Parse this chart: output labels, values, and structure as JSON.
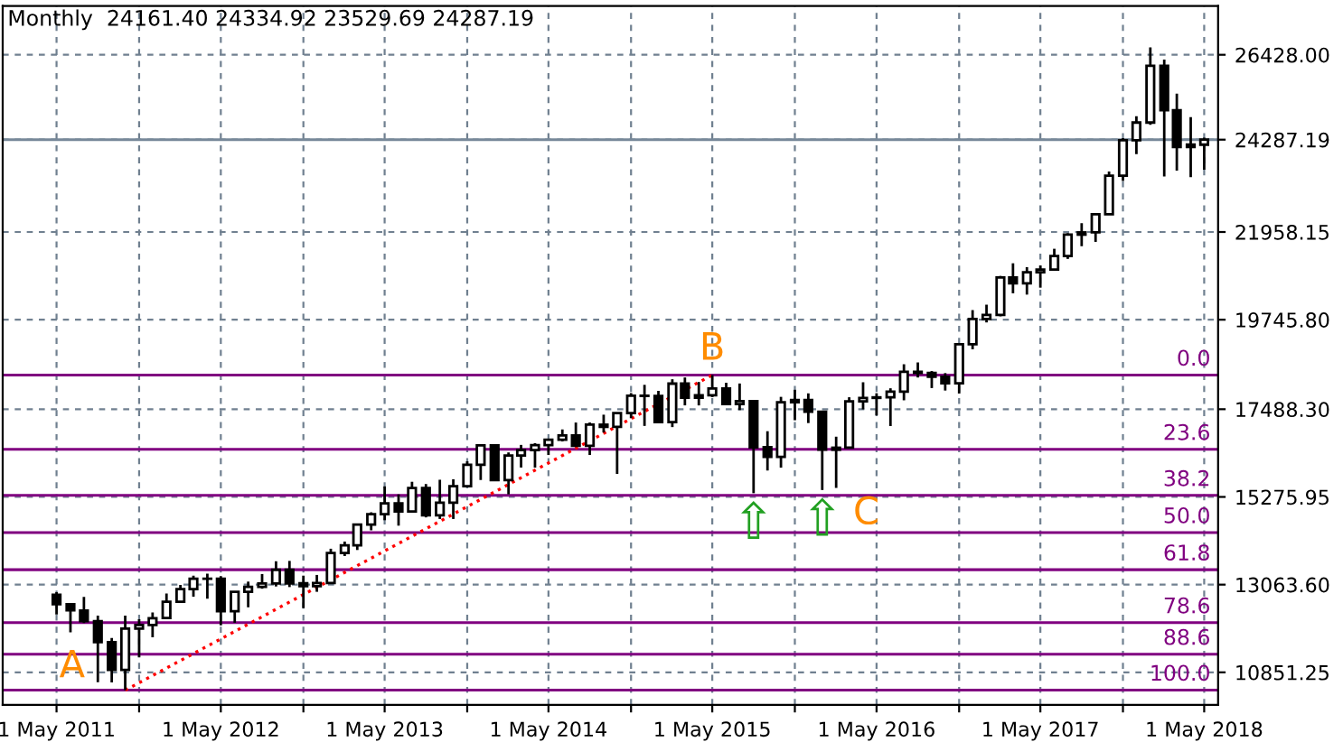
{
  "chart_data": {
    "type": "candlestick",
    "title": "Monthly  24161.40 24334.92 23529.69 24287.19",
    "x": [
      "2011-05",
      "2011-06",
      "2011-07",
      "2011-08",
      "2011-09",
      "2011-10",
      "2011-11",
      "2011-12",
      "2012-01",
      "2012-02",
      "2012-03",
      "2012-04",
      "2012-05",
      "2012-06",
      "2012-07",
      "2012-08",
      "2012-09",
      "2012-10",
      "2012-11",
      "2012-12",
      "2013-01",
      "2013-02",
      "2013-03",
      "2013-04",
      "2013-05",
      "2013-06",
      "2013-07",
      "2013-08",
      "2013-09",
      "2013-10",
      "2013-11",
      "2013-12",
      "2014-01",
      "2014-02",
      "2014-03",
      "2014-04",
      "2014-05",
      "2014-06",
      "2014-07",
      "2014-08",
      "2014-09",
      "2014-10",
      "2014-11",
      "2014-12",
      "2015-01",
      "2015-02",
      "2015-03",
      "2015-04",
      "2015-05",
      "2015-06",
      "2015-07",
      "2015-08",
      "2015-09",
      "2015-10",
      "2015-11",
      "2015-12",
      "2016-01",
      "2016-02",
      "2016-03",
      "2016-04",
      "2016-05",
      "2016-06",
      "2016-07",
      "2016-08",
      "2016-09",
      "2016-10",
      "2016-11",
      "2016-12",
      "2017-01",
      "2017-02",
      "2017-03",
      "2017-04",
      "2017-05",
      "2017-06",
      "2017-07",
      "2017-08",
      "2017-09",
      "2017-10",
      "2017-11",
      "2017-12",
      "2018-01",
      "2018-02",
      "2018-03",
      "2018-04",
      "2018-05"
    ],
    "ohlc": [
      [
        12810,
        12876,
        12309,
        12570
      ],
      [
        12569,
        12580,
        11862,
        12414
      ],
      [
        12412,
        12754,
        12093,
        12143
      ],
      [
        12143,
        12284,
        10604,
        11614
      ],
      [
        11613,
        11717,
        10597,
        10913
      ],
      [
        10913,
        12284,
        10404,
        11955
      ],
      [
        11955,
        12188,
        11231,
        12046
      ],
      [
        12046,
        12360,
        11735,
        12218
      ],
      [
        12221,
        12842,
        12221,
        12633
      ],
      [
        12632,
        13056,
        12600,
        12952
      ],
      [
        12952,
        13290,
        12759,
        13212
      ],
      [
        13212,
        13339,
        12710,
        13214
      ],
      [
        13214,
        13279,
        12035,
        12393
      ],
      [
        12393,
        12898,
        12101,
        12880
      ],
      [
        12880,
        13140,
        12492,
        13009
      ],
      [
        13009,
        13331,
        12961,
        13091
      ],
      [
        13091,
        13653,
        13017,
        13437
      ],
      [
        13437,
        13662,
        13002,
        13096
      ],
      [
        13096,
        13290,
        12471,
        13025
      ],
      [
        13025,
        13308,
        12883,
        13104
      ],
      [
        13104,
        13969,
        13104,
        13861
      ],
      [
        13861,
        14150,
        13784,
        14054
      ],
      [
        14054,
        14585,
        13937,
        14579
      ],
      [
        14579,
        14888,
        14434,
        14840
      ],
      [
        14840,
        15542,
        14688,
        15116
      ],
      [
        15116,
        15340,
        14551,
        14910
      ],
      [
        14910,
        15658,
        14910,
        15500
      ],
      [
        15500,
        15601,
        14760,
        14810
      ],
      [
        14810,
        15709,
        14720,
        15130
      ],
      [
        15130,
        15721,
        14720,
        15546
      ],
      [
        15546,
        16174,
        15546,
        16086
      ],
      [
        16086,
        16588,
        15703,
        16577
      ],
      [
        16577,
        16588,
        15699,
        15699
      ],
      [
        15699,
        16398,
        15340,
        16322
      ],
      [
        16322,
        16588,
        16017,
        16458
      ],
      [
        16458,
        16632,
        16015,
        16581
      ],
      [
        16581,
        16736,
        16333,
        16717
      ],
      [
        16717,
        16978,
        16675,
        16827
      ],
      [
        16827,
        17152,
        16563,
        16563
      ],
      [
        16563,
        17153,
        16334,
        17098
      ],
      [
        17098,
        17350,
        16901,
        17043
      ],
      [
        17043,
        17395,
        15855,
        17391
      ],
      [
        17391,
        17895,
        17261,
        17828
      ],
      [
        17828,
        18103,
        17067,
        17823
      ],
      [
        17823,
        17951,
        17136,
        17165
      ],
      [
        17165,
        18244,
        17037,
        18133
      ],
      [
        18133,
        18289,
        17585,
        17776
      ],
      [
        17776,
        18175,
        17584,
        17841
      ],
      [
        17841,
        18351,
        17791,
        18011
      ],
      [
        18011,
        18155,
        17596,
        17620
      ],
      [
        17620,
        18137,
        17465,
        17690
      ],
      [
        17690,
        17706,
        15370,
        16528
      ],
      [
        16528,
        16933,
        15942,
        16285
      ],
      [
        16285,
        17800,
        16014,
        17664
      ],
      [
        17664,
        17978,
        17210,
        17720
      ],
      [
        17720,
        17888,
        17139,
        17425
      ],
      [
        17425,
        17425,
        15450,
        16466
      ],
      [
        16466,
        16795,
        15503,
        16517
      ],
      [
        16517,
        17790,
        16517,
        17685
      ],
      [
        17685,
        18168,
        17484,
        17774
      ],
      [
        17774,
        17891,
        17331,
        17787
      ],
      [
        17787,
        18016,
        17063,
        17930
      ],
      [
        17930,
        18622,
        17713,
        18432
      ],
      [
        18432,
        18668,
        18288,
        18401
      ],
      [
        18401,
        18450,
        18022,
        18308
      ],
      [
        18308,
        18399,
        17959,
        18142
      ],
      [
        18142,
        19152,
        17884,
        19124
      ],
      [
        19124,
        19988,
        19000,
        19763
      ],
      [
        19763,
        20125,
        19677,
        19864
      ],
      [
        19864,
        20851,
        19831,
        20812
      ],
      [
        20812,
        21169,
        20412,
        20663
      ],
      [
        20663,
        21071,
        20379,
        20941
      ],
      [
        20941,
        21113,
        20554,
        21009
      ],
      [
        21009,
        21535,
        20994,
        21350
      ],
      [
        21350,
        21929,
        21279,
        21891
      ],
      [
        21891,
        22179,
        21600,
        21948
      ],
      [
        21948,
        22420,
        21709,
        22405
      ],
      [
        22405,
        23485,
        22400,
        23377
      ],
      [
        23377,
        24327,
        23242,
        24272
      ],
      [
        24272,
        24876,
        23921,
        24719
      ],
      [
        24719,
        26616,
        24660,
        26149
      ],
      [
        26149,
        26307,
        23360,
        25029
      ],
      [
        25029,
        25449,
        23509,
        24103
      ],
      [
        24103,
        24858,
        23344,
        24163
      ],
      [
        24161.4,
        24334.92,
        23529.69,
        24287.19
      ]
    ],
    "series": [
      {
        "type": "line",
        "color": "#ff0000",
        "line_style": "dotted",
        "x": [
          "2011-10",
          "2015-05"
        ],
        "values": [
          10400,
          18350
        ]
      }
    ],
    "xlim": [
      "2011-01-01",
      "2018-06-01"
    ],
    "xticks": [
      {
        "value": "2011-05-01",
        "label": "1 May 2011"
      },
      {
        "value": "2011-11-01",
        "label": null
      },
      {
        "value": "2012-05-01",
        "label": "1 May 2012"
      },
      {
        "value": "2012-11-01",
        "label": null
      },
      {
        "value": "2013-05-01",
        "label": "1 May 2013"
      },
      {
        "value": "2013-11-01",
        "label": null
      },
      {
        "value": "2014-05-01",
        "label": "1 May 2014"
      },
      {
        "value": "2014-11-01",
        "label": null
      },
      {
        "value": "2015-05-01",
        "label": "1 May 2015"
      },
      {
        "value": "2015-11-01",
        "label": null
      },
      {
        "value": "2016-05-01",
        "label": "1 May 2016"
      },
      {
        "value": "2016-11-01",
        "label": null
      },
      {
        "value": "2017-05-01",
        "label": "1 May 2017"
      },
      {
        "value": "2017-11-01",
        "label": null
      },
      {
        "value": "2018-05-01",
        "label": "1 May 2018"
      }
    ],
    "ylim": [
      10030,
      27660
    ],
    "yticks": [
      {
        "value": 10851.25,
        "label": "10851.25"
      },
      {
        "value": 13063.6,
        "label": "13063.60"
      },
      {
        "value": 15275.95,
        "label": "15275.95"
      },
      {
        "value": 17488.3,
        "label": "17488.30"
      },
      {
        "value": 19745.8,
        "label": "19745.80"
      },
      {
        "value": 21958.15,
        "label": "21958.15"
      },
      {
        "value": 24287.19,
        "label": "24287.19"
      },
      {
        "value": 26428,
        "label": "26428.00"
      }
    ],
    "grid": true,
    "ref_lines": [
      {
        "axis": "y",
        "value": 18351,
        "color": "#800080"
      },
      {
        "axis": "y",
        "value": 16476,
        "color": "#800080"
      },
      {
        "axis": "y",
        "value": 15315,
        "color": "#800080"
      },
      {
        "axis": "y",
        "value": 14378,
        "color": "#800080"
      },
      {
        "axis": "y",
        "value": 13440,
        "color": "#800080"
      },
      {
        "axis": "y",
        "value": 12105,
        "color": "#800080"
      },
      {
        "axis": "y",
        "value": 11310,
        "color": "#800080"
      },
      {
        "axis": "y",
        "value": 10404,
        "color": "#800080"
      },
      {
        "axis": "y",
        "value": 24287.19,
        "color": "#778899"
      }
    ],
    "annotations": [
      {
        "text": "A",
        "x": "2011-10",
        "y": 10404
      },
      {
        "text": "B",
        "x": "2015-05",
        "y": 18351
      },
      {
        "text": "C",
        "x": "2016-02",
        "y": 15503
      },
      {
        "text": "⇧",
        "x": "2015-08",
        "y": 15370
      },
      {
        "text": "⇧",
        "x": "2016-01",
        "y": 15450
      },
      {
        "text": "0.0",
        "x": "2018-06",
        "y": 18351
      },
      {
        "text": "23.6",
        "x": "2018-06",
        "y": 16476
      },
      {
        "text": "38.2",
        "x": "2018-06",
        "y": 15315
      },
      {
        "text": "50.0",
        "x": "2018-06",
        "y": 14378
      },
      {
        "text": "61.8",
        "x": "2018-06",
        "y": 13440
      },
      {
        "text": "78.6",
        "x": "2018-06",
        "y": 12105
      },
      {
        "text": "88.6",
        "x": "2018-06",
        "y": 11310
      },
      {
        "text": "100.0",
        "x": "2018-06",
        "y": 10404
      }
    ]
  }
}
